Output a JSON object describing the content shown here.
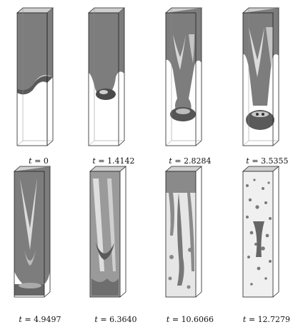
{
  "figure": {
    "panels": [
      {
        "t_label": "t",
        "value": "0"
      },
      {
        "t_label": "t",
        "value": "1.4142"
      },
      {
        "t_label": "t",
        "value": "2.8284"
      },
      {
        "t_label": "t",
        "value": "3.5355"
      },
      {
        "t_label": "t",
        "value": "4.9497"
      },
      {
        "t_label": "t",
        "value": "6.3640"
      },
      {
        "t_label": "t",
        "value": "10.6066"
      },
      {
        "t_label": "t",
        "value": "12.7279"
      }
    ],
    "equals": "=",
    "colors": {
      "fluid": "#7d7d7d",
      "fluid_light": "#d2d2d2",
      "fluid_dark": "#3f3f3f",
      "box_edge": "#222222"
    }
  }
}
